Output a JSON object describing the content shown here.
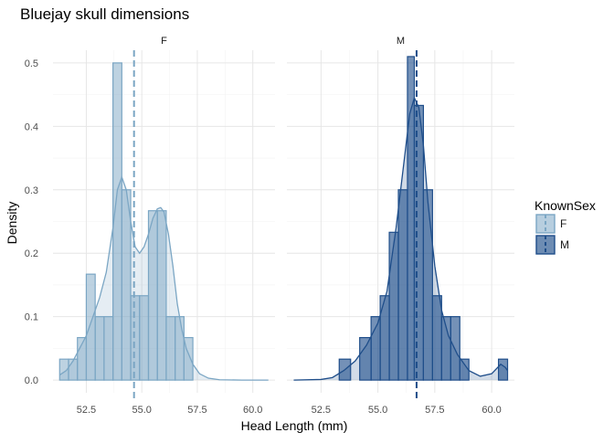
{
  "chart_data": {
    "type": "histogram-density-facet",
    "title": "Bluejay skull dimensions",
    "xlabel": "Head Length (mm)",
    "ylabel": "Density",
    "x_ticks": [
      "52.5",
      "55.0",
      "57.5",
      "60.0"
    ],
    "x_tick_values": [
      52.5,
      55.0,
      57.5,
      60.0
    ],
    "y_ticks": [
      "0.0",
      "0.1",
      "0.2",
      "0.3",
      "0.4",
      "0.5"
    ],
    "y_tick_values": [
      0.0,
      0.1,
      0.2,
      0.3,
      0.4,
      0.5
    ],
    "xlim": [
      51.0,
      61.0
    ],
    "ylim": [
      -0.02,
      0.52
    ],
    "grid": true,
    "legend": {
      "title": "KnownSex",
      "placement": "right",
      "entries": [
        {
          "label": "F",
          "fill": "#7ba6c4",
          "stroke": "#7ba6c4"
        },
        {
          "label": "M",
          "fill": "#1f4e8a",
          "stroke": "#1f4e8a"
        }
      ]
    },
    "panels": [
      {
        "strip": "F",
        "series": "F",
        "fill": "#7ba6c4",
        "line": "#7ba6c4",
        "mean": 54.65,
        "bins": [
          {
            "x0": 51.3,
            "x1": 51.7,
            "y": 0.033
          },
          {
            "x0": 51.7,
            "x1": 52.1,
            "y": 0.033
          },
          {
            "x0": 52.1,
            "x1": 52.5,
            "y": 0.067
          },
          {
            "x0": 52.5,
            "x1": 52.9,
            "y": 0.167
          },
          {
            "x0": 52.9,
            "x1": 53.3,
            "y": 0.1
          },
          {
            "x0": 53.3,
            "x1": 53.7,
            "y": 0.1
          },
          {
            "x0": 53.7,
            "x1": 54.1,
            "y": 0.5
          },
          {
            "x0": 54.1,
            "x1": 54.5,
            "y": 0.3
          },
          {
            "x0": 54.5,
            "x1": 54.9,
            "y": 0.133
          },
          {
            "x0": 54.9,
            "x1": 55.3,
            "y": 0.133
          },
          {
            "x0": 55.3,
            "x1": 55.7,
            "y": 0.267
          },
          {
            "x0": 55.7,
            "x1": 56.1,
            "y": 0.267
          },
          {
            "x0": 56.1,
            "x1": 56.5,
            "y": 0.1
          },
          {
            "x0": 56.5,
            "x1": 56.9,
            "y": 0.1
          },
          {
            "x0": 56.9,
            "x1": 57.3,
            "y": 0.067
          }
        ],
        "density": [
          [
            51.3,
            0.008
          ],
          [
            51.6,
            0.015
          ],
          [
            51.9,
            0.03
          ],
          [
            52.2,
            0.05
          ],
          [
            52.5,
            0.07
          ],
          [
            52.8,
            0.1
          ],
          [
            53.1,
            0.13
          ],
          [
            53.4,
            0.17
          ],
          [
            53.7,
            0.24
          ],
          [
            53.9,
            0.3
          ],
          [
            54.1,
            0.32
          ],
          [
            54.3,
            0.3
          ],
          [
            54.5,
            0.25
          ],
          [
            54.7,
            0.21
          ],
          [
            54.9,
            0.2
          ],
          [
            55.1,
            0.21
          ],
          [
            55.3,
            0.23
          ],
          [
            55.5,
            0.255
          ],
          [
            55.7,
            0.27
          ],
          [
            55.85,
            0.272
          ],
          [
            56.0,
            0.265
          ],
          [
            56.2,
            0.23
          ],
          [
            56.4,
            0.18
          ],
          [
            56.6,
            0.12
          ],
          [
            56.8,
            0.08
          ],
          [
            57.0,
            0.05
          ],
          [
            57.3,
            0.025
          ],
          [
            57.6,
            0.01
          ],
          [
            58.0,
            0.003
          ],
          [
            58.5,
            0.0005
          ],
          [
            59.5,
            0.0
          ],
          [
            60.7,
            0.0
          ]
        ]
      },
      {
        "strip": "M",
        "series": "M",
        "fill": "#1f4e8a",
        "line": "#1f4e8a",
        "mean": 56.7,
        "bins": [
          {
            "x0": 53.3,
            "x1": 53.8,
            "y": 0.033
          },
          {
            "x0": 53.8,
            "x1": 54.2,
            "y": 0.0
          },
          {
            "x0": 54.2,
            "x1": 54.7,
            "y": 0.067
          },
          {
            "x0": 54.7,
            "x1": 55.1,
            "y": 0.1
          },
          {
            "x0": 55.1,
            "x1": 55.5,
            "y": 0.133
          },
          {
            "x0": 55.5,
            "x1": 55.9,
            "y": 0.233
          },
          {
            "x0": 55.9,
            "x1": 56.3,
            "y": 0.3
          },
          {
            "x0": 56.3,
            "x1": 56.6,
            "y": 0.51
          },
          {
            "x0": 56.6,
            "x1": 57.0,
            "y": 0.433
          },
          {
            "x0": 57.0,
            "x1": 57.4,
            "y": 0.3
          },
          {
            "x0": 57.4,
            "x1": 57.8,
            "y": 0.133
          },
          {
            "x0": 57.8,
            "x1": 58.2,
            "y": 0.1
          },
          {
            "x0": 58.2,
            "x1": 58.6,
            "y": 0.1
          },
          {
            "x0": 58.6,
            "x1": 59.0,
            "y": 0.033
          },
          {
            "x0": 59.0,
            "x1": 59.5,
            "y": 0.0
          },
          {
            "x0": 59.5,
            "x1": 59.9,
            "y": 0.0
          },
          {
            "x0": 59.9,
            "x1": 60.3,
            "y": 0.0
          },
          {
            "x0": 60.3,
            "x1": 60.7,
            "y": 0.033
          }
        ],
        "density": [
          [
            51.3,
            0.0
          ],
          [
            52.5,
            0.001
          ],
          [
            53.0,
            0.004
          ],
          [
            53.5,
            0.015
          ],
          [
            54.0,
            0.03
          ],
          [
            54.5,
            0.055
          ],
          [
            55.0,
            0.09
          ],
          [
            55.4,
            0.14
          ],
          [
            55.8,
            0.24
          ],
          [
            56.1,
            0.33
          ],
          [
            56.4,
            0.42
          ],
          [
            56.6,
            0.445
          ],
          [
            56.8,
            0.43
          ],
          [
            57.0,
            0.37
          ],
          [
            57.2,
            0.28
          ],
          [
            57.5,
            0.18
          ],
          [
            57.8,
            0.11
          ],
          [
            58.1,
            0.07
          ],
          [
            58.5,
            0.04
          ],
          [
            59.0,
            0.015
          ],
          [
            59.5,
            0.006
          ],
          [
            60.0,
            0.01
          ],
          [
            60.4,
            0.025
          ],
          [
            60.6,
            0.02
          ],
          [
            60.7,
            0.015
          ]
        ]
      }
    ]
  }
}
